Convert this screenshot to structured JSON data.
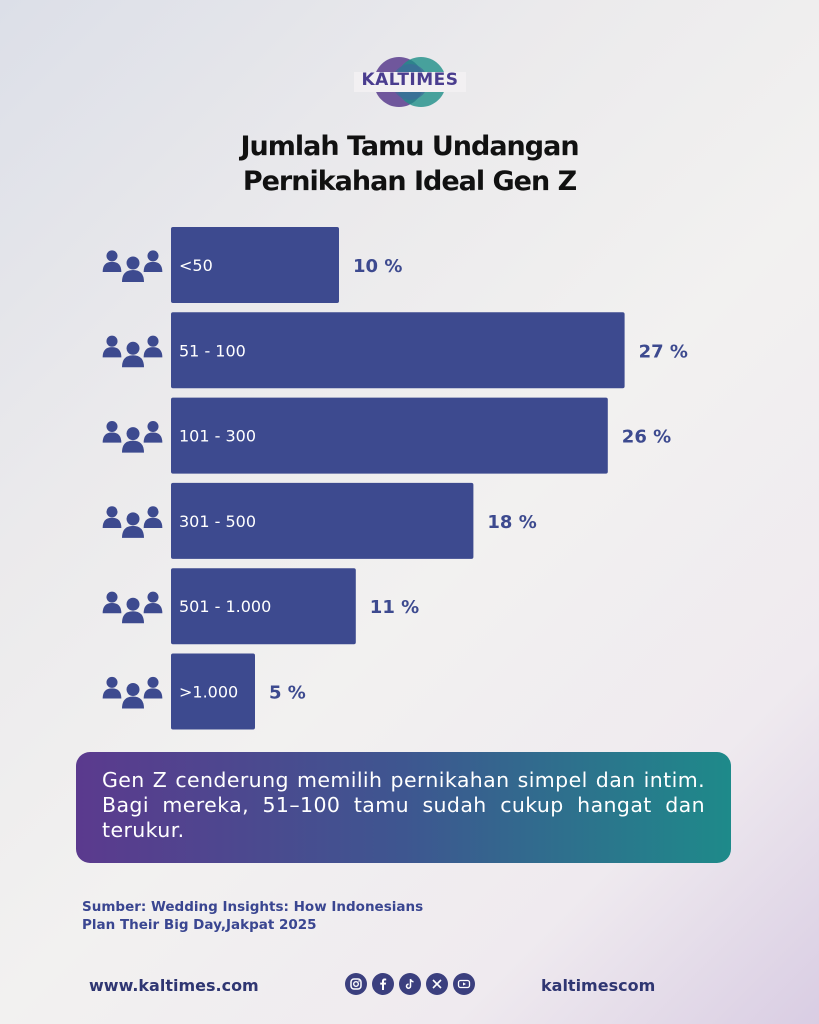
{
  "brand": {
    "logo_text": "KALTIMES"
  },
  "title_lines": [
    "Jumlah Tamu Undangan",
    "Pernikahan Ideal Gen Z"
  ],
  "chart_data": {
    "type": "bar",
    "orientation": "horizontal",
    "title": "Jumlah Tamu Undangan Pernikahan Ideal Gen Z",
    "categories": [
      "<50",
      "51 - 100",
      "101 - 300",
      "301 - 500",
      "501 - 1.000",
      ">1.000"
    ],
    "values": [
      10,
      27,
      26,
      18,
      11,
      5
    ],
    "value_labels": [
      "10 %",
      "27 %",
      "26 %",
      "18 %",
      "11 %",
      "5 %"
    ],
    "unit": "%",
    "bar_color": "#3d4a8f",
    "row_icon": "people-group-icon"
  },
  "summary": {
    "text": "Gen Z cenderung memilih pernikahan simpel dan intim. Bagi mereka, 51–100 tamu sudah cukup hangat dan terukur."
  },
  "source": {
    "line1": "Sumber: Wedding Insights: How Indonesians",
    "line2": "Plan Their Big Day,Jakpat 2025"
  },
  "footer": {
    "website": "www.kaltimes.com",
    "handle": "kaltimescom",
    "social_icons": [
      "instagram-icon",
      "facebook-icon",
      "tiktok-icon",
      "x-icon",
      "youtube-icon"
    ]
  },
  "colors": {
    "accent": "#3d4a8f",
    "text_dark": "#111111",
    "gradient_start": "#5b3a8e",
    "gradient_end": "#1e8a8a"
  }
}
